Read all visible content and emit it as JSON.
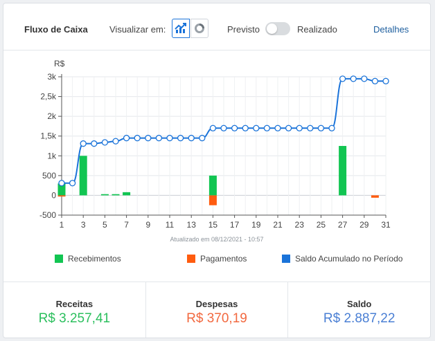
{
  "header": {
    "title": "Fluxo de Caixa",
    "view_label": "Visualizar em:",
    "toggle_left": "Previsto",
    "toggle_right": "Realizado",
    "details_link": "Detalhes"
  },
  "colors": {
    "receipts": "#12c552",
    "payments": "#ff5c0f",
    "balance": "#1a73d9",
    "receita_value": "#2bbf5d",
    "despesa_value": "#f2683f",
    "saldo_value": "#4a7fd4"
  },
  "icons": {
    "line_view": "line-chart-icon",
    "donut_view": "donut-chart-icon"
  },
  "chart_data": {
    "type": "bar",
    "unit_label": "R$",
    "ylim": [
      -500,
      3000
    ],
    "yticks": [
      -500,
      0,
      500,
      1000,
      1500,
      2000,
      2500,
      3000
    ],
    "ytick_labels": [
      "-500",
      "0",
      "500",
      "1k",
      "1,5k",
      "2k",
      "2,5k",
      "3k"
    ],
    "x": [
      1,
      2,
      3,
      4,
      5,
      6,
      7,
      8,
      9,
      10,
      11,
      12,
      13,
      14,
      15,
      16,
      17,
      18,
      19,
      20,
      21,
      22,
      23,
      24,
      25,
      26,
      27,
      28,
      29,
      30,
      31
    ],
    "xtick_labels": [
      "1",
      "3",
      "5",
      "7",
      "9",
      "11",
      "13",
      "15",
      "17",
      "19",
      "21",
      "23",
      "25",
      "27",
      "29",
      "31"
    ],
    "updated_text": "Atualizado em 08/12/2021 - 10:57",
    "grid": true,
    "series": [
      {
        "name": "Recebimentos",
        "type": "bar",
        "values": [
          300,
          0,
          1000,
          0,
          30,
          30,
          80,
          0,
          0,
          0,
          0,
          0,
          0,
          0,
          500,
          0,
          0,
          0,
          0,
          0,
          0,
          0,
          0,
          0,
          0,
          0,
          1250,
          0,
          0,
          0,
          0
        ]
      },
      {
        "name": "Pagamentos",
        "type": "bar",
        "values": [
          -30,
          0,
          0,
          0,
          0,
          0,
          0,
          0,
          0,
          0,
          0,
          0,
          0,
          0,
          -250,
          0,
          0,
          0,
          0,
          0,
          0,
          0,
          0,
          0,
          0,
          0,
          0,
          0,
          0,
          -60,
          0
        ]
      },
      {
        "name": "Saldo Acumulado no Período",
        "type": "line",
        "values": [
          310,
          310,
          1310,
          1310,
          1340,
          1370,
          1450,
          1450,
          1450,
          1450,
          1450,
          1450,
          1450,
          1450,
          1700,
          1700,
          1700,
          1700,
          1700,
          1700,
          1700,
          1700,
          1700,
          1700,
          1700,
          1700,
          2950,
          2950,
          2950,
          2890,
          2890
        ]
      }
    ]
  },
  "summary": {
    "receitas_label": "Receitas",
    "receitas_value": "R$ 3.257,41",
    "despesas_label": "Despesas",
    "despesas_value": "R$ 370,19",
    "saldo_label": "Saldo",
    "saldo_value": "R$ 2.887,22"
  }
}
